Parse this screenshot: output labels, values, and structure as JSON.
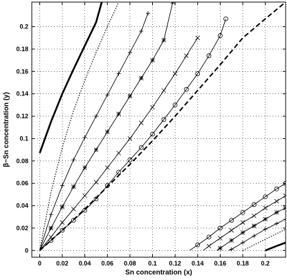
{
  "chart_data": {
    "type": "line",
    "title": "",
    "xlabel": "Sn concentration (x)",
    "ylabel": "β−Sn concentration (y)",
    "xlim": [
      -0.007,
      0.218
    ],
    "ylim": [
      -0.006,
      0.222
    ],
    "xticks": [
      0,
      0.02,
      0.04,
      0.06,
      0.08,
      0.1,
      0.12,
      0.14,
      0.16,
      0.18,
      0.2
    ],
    "xtick_labels": [
      "0",
      "0.02",
      "0.04",
      "0.06",
      "0.08",
      "0.1",
      "0.12",
      "0.14",
      "0.16",
      "0.18",
      "0.2"
    ],
    "yticks": [
      0,
      0.02,
      0.04,
      0.06,
      0.08,
      0.1,
      0.12,
      0.14,
      0.16,
      0.18,
      0.2
    ],
    "ytick_labels": [
      "0",
      "0.02",
      "0.04",
      "0.06",
      "0.08",
      "0.1",
      "0.12",
      "0.14",
      "0.16",
      "0.18",
      "0.2"
    ],
    "grid": true,
    "legend": false,
    "series": [
      {
        "style": "thick-solid",
        "x": [
          0,
          0.01,
          0.02,
          0.03,
          0.04,
          0.05,
          0.055
        ],
        "y": [
          0.087,
          0.115,
          0.14,
          0.162,
          0.183,
          0.204,
          0.222
        ]
      },
      {
        "style": "dotted",
        "x": [
          0,
          0.01,
          0.02,
          0.03,
          0.04,
          0.05,
          0.06,
          0.07
        ],
        "y": [
          0,
          0.052,
          0.092,
          0.125,
          0.152,
          0.177,
          0.2,
          0.222
        ]
      },
      {
        "style": "solid-plus",
        "x": [
          0,
          0.01,
          0.02,
          0.03,
          0.04,
          0.05,
          0.06,
          0.07,
          0.08,
          0.09,
          0.096
        ],
        "y": [
          0,
          0.032,
          0.058,
          0.081,
          0.101,
          0.12,
          0.139,
          0.158,
          0.177,
          0.196,
          0.212
        ]
      },
      {
        "style": "solid-star",
        "x": [
          0,
          0.01,
          0.02,
          0.03,
          0.04,
          0.05,
          0.06,
          0.07,
          0.08,
          0.09,
          0.1,
          0.11,
          0.118
        ],
        "y": [
          0,
          0.02,
          0.039,
          0.057,
          0.074,
          0.09,
          0.106,
          0.122,
          0.138,
          0.154,
          0.17,
          0.188,
          0.222
        ]
      },
      {
        "style": "solid-x",
        "x": [
          0,
          0.01,
          0.02,
          0.03,
          0.04,
          0.05,
          0.06,
          0.07,
          0.08,
          0.09,
          0.1,
          0.11,
          0.12,
          0.13,
          0.14
        ],
        "y": [
          0,
          0.012,
          0.025,
          0.037,
          0.049,
          0.061,
          0.074,
          0.087,
          0.1,
          0.114,
          0.128,
          0.143,
          0.158,
          0.174,
          0.19
        ]
      },
      {
        "style": "solid-circle",
        "x": [
          0,
          0.01,
          0.02,
          0.03,
          0.04,
          0.05,
          0.06,
          0.07,
          0.08,
          0.09,
          0.1,
          0.11,
          0.12,
          0.13,
          0.14,
          0.15,
          0.16,
          0.165
        ],
        "y": [
          0,
          0.009,
          0.018,
          0.027,
          0.036,
          0.046,
          0.058,
          0.07,
          0.081,
          0.092,
          0.104,
          0.117,
          0.13,
          0.144,
          0.158,
          0.174,
          0.192,
          0.207
        ]
      },
      {
        "style": "thick-dashed",
        "x": [
          0,
          0.02,
          0.04,
          0.06,
          0.08,
          0.1,
          0.12,
          0.14,
          0.16,
          0.18,
          0.2,
          0.218
        ],
        "y": [
          0,
          0.018,
          0.037,
          0.057,
          0.077,
          0.098,
          0.12,
          0.143,
          0.166,
          0.19,
          0.207,
          0.222
        ]
      },
      {
        "style": "solid-circle",
        "x": [
          0.133,
          0.14,
          0.15,
          0.16,
          0.17,
          0.18,
          0.19,
          0.2,
          0.21,
          0.218
        ],
        "y": [
          0,
          0.005,
          0.012,
          0.02,
          0.027,
          0.034,
          0.041,
          0.048,
          0.055,
          0.06
        ]
      },
      {
        "style": "solid-x",
        "x": [
          0.145,
          0.15,
          0.16,
          0.17,
          0.18,
          0.19,
          0.2,
          0.21,
          0.218
        ],
        "y": [
          0,
          0.004,
          0.011,
          0.018,
          0.025,
          0.031,
          0.038,
          0.044,
          0.049
        ]
      },
      {
        "style": "solid-star",
        "x": [
          0.157,
          0.16,
          0.17,
          0.18,
          0.19,
          0.2,
          0.21,
          0.218
        ],
        "y": [
          0,
          0.002,
          0.009,
          0.016,
          0.022,
          0.028,
          0.034,
          0.038
        ]
      },
      {
        "style": "solid-plus",
        "x": [
          0.168,
          0.17,
          0.18,
          0.19,
          0.2,
          0.21,
          0.218
        ],
        "y": [
          0,
          0.001,
          0.007,
          0.013,
          0.019,
          0.024,
          0.028
        ]
      },
      {
        "style": "dotted",
        "x": [
          0.18,
          0.19,
          0.2,
          0.21,
          0.218
        ],
        "y": [
          0,
          0.005,
          0.01,
          0.015,
          0.019
        ]
      },
      {
        "style": "thick-solid",
        "x": [
          0.2,
          0.21,
          0.218
        ],
        "y": [
          0,
          0.004,
          0.007
        ]
      }
    ]
  }
}
